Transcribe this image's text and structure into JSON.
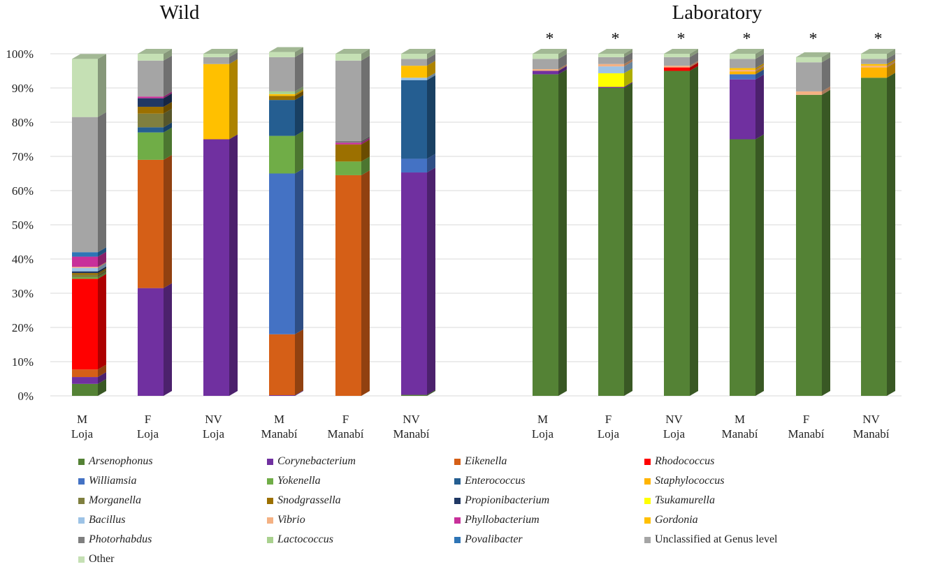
{
  "chart_data": {
    "type": "bar",
    "subtype": "stacked-100-percent-3d",
    "y_ticks": [
      "0%",
      "10%",
      "20%",
      "30%",
      "40%",
      "50%",
      "60%",
      "70%",
      "80%",
      "90%",
      "100%"
    ],
    "ylim": [
      0,
      100
    ],
    "groups": [
      {
        "title": "Wild",
        "bars": [
          0,
          1,
          2,
          3,
          4,
          5
        ]
      },
      {
        "title": "Laboratory",
        "bars": [
          6,
          7,
          8,
          9,
          10,
          11
        ]
      }
    ],
    "categories": [
      [
        "M",
        "Loja"
      ],
      [
        "F",
        "Loja"
      ],
      [
        "NV",
        "Loja"
      ],
      [
        "M",
        "Manabí"
      ],
      [
        "F",
        "Manabí"
      ],
      [
        "NV",
        "Manabí"
      ],
      [
        "M",
        "Loja"
      ],
      [
        "F",
        "Loja"
      ],
      [
        "NV",
        "Loja"
      ],
      [
        "M",
        "Manabí"
      ],
      [
        "F",
        "Manabí"
      ],
      [
        "NV",
        "Manabí"
      ]
    ],
    "significance_marker": "*",
    "significant": [
      false,
      false,
      false,
      false,
      false,
      false,
      true,
      true,
      true,
      true,
      true,
      true
    ],
    "series": [
      {
        "name": "Arsenophonus",
        "italic": true,
        "color": "#548235",
        "values": [
          3.5,
          0,
          0,
          0,
          0,
          0.3,
          94,
          90,
          95,
          75,
          88,
          93
        ]
      },
      {
        "name": "Corynebacterium",
        "italic": true,
        "color": "#7030A0",
        "values": [
          2,
          31.5,
          75,
          0.2,
          0,
          65,
          1,
          0.3,
          0,
          17.5,
          0,
          0
        ]
      },
      {
        "name": "Eikenella",
        "italic": true,
        "color": "#D55F17",
        "values": [
          2.2,
          37.5,
          0,
          17.8,
          64.5,
          0,
          0,
          0,
          0,
          0,
          0,
          0
        ]
      },
      {
        "name": "Rhodococcus",
        "italic": true,
        "color": "#FF0000",
        "values": [
          26.5,
          0,
          0,
          0,
          0,
          0,
          0,
          0,
          1,
          0,
          0,
          0
        ]
      },
      {
        "name": "Williamsia",
        "italic": true,
        "color": "#4472C4",
        "values": [
          0,
          0,
          0,
          47,
          0,
          4,
          0,
          0,
          0,
          1.5,
          0,
          0
        ]
      },
      {
        "name": "Yokenella",
        "italic": true,
        "color": "#70AD47",
        "values": [
          0.5,
          8,
          0,
          11,
          4,
          0,
          0,
          0,
          0,
          0,
          0,
          0
        ]
      },
      {
        "name": "Enterococcus",
        "italic": true,
        "color": "#255E91",
        "values": [
          0,
          1.5,
          0,
          10.5,
          0,
          23,
          0,
          0,
          0,
          0,
          0,
          0
        ]
      },
      {
        "name": "Staphylococcus",
        "italic": true,
        "color": "#FFB400",
        "values": [
          0,
          0,
          0,
          0,
          0,
          0,
          0,
          0,
          0,
          0.8,
          0,
          3
        ]
      },
      {
        "name": "Morganella",
        "italic": true,
        "color": "#7F7F3F",
        "values": [
          0.7,
          4,
          0,
          0,
          0,
          0,
          0,
          0,
          0,
          0,
          0,
          0
        ]
      },
      {
        "name": "Snodgrassella",
        "italic": true,
        "color": "#9C7000",
        "values": [
          0.5,
          2,
          0,
          1.2,
          5,
          0,
          0,
          0,
          0,
          0,
          0,
          0
        ]
      },
      {
        "name": "Propionibacterium",
        "italic": true,
        "color": "#203864",
        "values": [
          0.5,
          2.5,
          0,
          0,
          0,
          0,
          0,
          0,
          0,
          0,
          0,
          0
        ]
      },
      {
        "name": "Tsukamurella",
        "italic": true,
        "color": "#FFFF00",
        "values": [
          0,
          0,
          0,
          0,
          0,
          0,
          0,
          4,
          0,
          0,
          0,
          0
        ]
      },
      {
        "name": "Bacillus",
        "italic": true,
        "color": "#9DC3E6",
        "values": [
          1,
          0,
          0,
          0,
          0,
          0.7,
          0,
          2,
          0,
          0,
          0,
          0
        ]
      },
      {
        "name": "Vibrio",
        "italic": true,
        "color": "#F4B183",
        "values": [
          0.3,
          0,
          0,
          0,
          0,
          0,
          0.5,
          0.7,
          0.5,
          0.5,
          1,
          0.5
        ]
      },
      {
        "name": "Phyllobacterium",
        "italic": true,
        "color": "#C8309A",
        "values": [
          3,
          0.5,
          0,
          0,
          0.5,
          0,
          0,
          0,
          0,
          0,
          0,
          0
        ]
      },
      {
        "name": "Gordonia",
        "italic": true,
        "color": "#FFC000",
        "values": [
          0,
          0,
          22,
          0.5,
          0,
          3.5,
          0,
          0,
          0,
          0.5,
          0,
          0.5
        ]
      },
      {
        "name": "Photorhabdus",
        "italic": true,
        "color": "#7F7F7F",
        "values": [
          0,
          0,
          0,
          0,
          0.5,
          0,
          0,
          0,
          0,
          0,
          0,
          0
        ]
      },
      {
        "name": "Lactococcus",
        "italic": true,
        "color": "#A9D18E",
        "values": [
          0,
          0,
          0,
          0.8,
          0,
          0,
          0,
          0,
          0,
          0,
          0,
          0
        ]
      },
      {
        "name": "Povalibacter",
        "italic": true,
        "color": "#2E75B6",
        "values": [
          1.3,
          0,
          0,
          0,
          0,
          0,
          0,
          0,
          0,
          0,
          0,
          0
        ]
      },
      {
        "name": "Unclassified at Genus level",
        "italic": false,
        "color": "#A5A5A5",
        "values": [
          39.5,
          10.5,
          2,
          10,
          23.5,
          2,
          3,
          2,
          2.5,
          2.7,
          8.5,
          1.5
        ]
      },
      {
        "name": "Other",
        "italic": false,
        "color": "#C5E0B4",
        "values": [
          17,
          2,
          1,
          1.5,
          2,
          1.5,
          1.5,
          1,
          1,
          1.5,
          1.5,
          1.5
        ]
      }
    ]
  }
}
